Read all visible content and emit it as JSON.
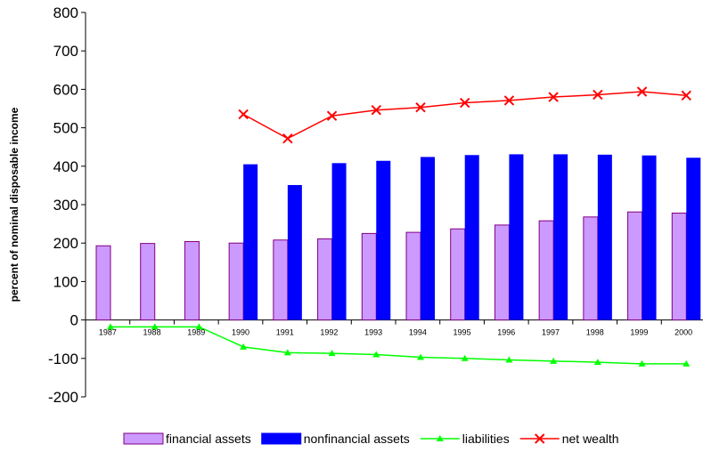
{
  "chart_data": {
    "type": "bar",
    "title": "",
    "xlabel": "",
    "ylabel": "percent of nominal disposable income",
    "ylim": [
      -200,
      800
    ],
    "yticks": [
      -200,
      -100,
      0,
      100,
      200,
      300,
      400,
      500,
      600,
      700,
      800
    ],
    "categories": [
      "1987",
      "1988",
      "1989",
      "1990",
      "1991",
      "1992",
      "1993",
      "1994",
      "1995",
      "1996",
      "1997",
      "1998",
      "1999",
      "2000"
    ],
    "series": [
      {
        "name": "financial assets",
        "type": "bar",
        "color": "#cc99ff",
        "border": "#800080",
        "values": [
          193,
          199,
          204,
          200,
          208,
          211,
          225,
          228,
          237,
          247,
          258,
          268,
          281,
          278
        ]
      },
      {
        "name": "nonfinancial assets",
        "type": "bar",
        "color": "#0000ff",
        "values": [
          null,
          null,
          null,
          405,
          351,
          408,
          414,
          424,
          429,
          431,
          431,
          430,
          428,
          422
        ]
      },
      {
        "name": "liabilities",
        "type": "line",
        "color": "#00ff00",
        "marker": "triangle",
        "values": [
          -18,
          -18,
          -18,
          -70,
          -85,
          -87,
          -90,
          -97,
          -100,
          -104,
          -107,
          -110,
          -114,
          -114
        ]
      },
      {
        "name": "net wealth",
        "type": "line",
        "color": "#ff0000",
        "marker": "x",
        "values": [
          null,
          null,
          null,
          535,
          472,
          531,
          546,
          553,
          565,
          571,
          580,
          586,
          594,
          584
        ]
      }
    ],
    "legend_position": "bottom"
  }
}
